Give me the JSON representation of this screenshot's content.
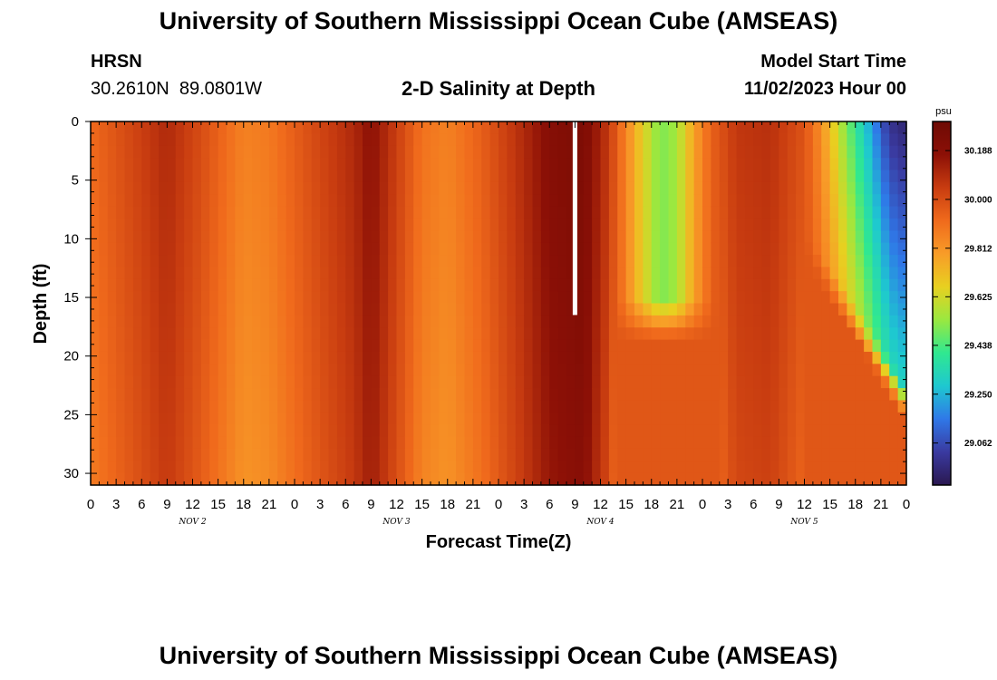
{
  "header": {
    "title": "University of Southern Mississippi Ocean Cube (AMSEAS)",
    "station": "HRSN",
    "coords": "30.2610N  89.0801W",
    "subtitle": "2-D Salinity at Depth",
    "model_label": "Model Start Time",
    "model_time": "11/02/2023 Hour 00"
  },
  "footer": {
    "title": "University of Southern Mississippi Ocean Cube (AMSEAS)"
  },
  "chart_data": {
    "type": "heatmap",
    "title": "2-D Salinity at Depth",
    "xlabel": "Forecast Time(Z)",
    "ylabel": "Depth (ft)",
    "x_unit": "forecast hour from model start",
    "xlim": [
      0,
      96
    ],
    "ylim": [
      0,
      31
    ],
    "x_ticks": [
      0,
      3,
      6,
      9,
      12,
      15,
      18,
      21,
      24,
      27,
      30,
      33,
      36,
      39,
      42,
      45,
      48,
      51,
      54,
      57,
      60,
      63,
      66,
      69,
      72,
      75,
      78,
      81,
      84,
      87,
      90,
      93,
      96
    ],
    "x_tick_labels": [
      "0",
      "3",
      "6",
      "9",
      "12",
      "15",
      "18",
      "21",
      "0",
      "3",
      "6",
      "9",
      "12",
      "15",
      "18",
      "21",
      "0",
      "3",
      "6",
      "9",
      "12",
      "15",
      "18",
      "21",
      "0",
      "3",
      "6",
      "9",
      "12",
      "15",
      "18",
      "21",
      "0"
    ],
    "y_ticks": [
      0,
      5,
      10,
      15,
      20,
      25,
      30
    ],
    "y_tick_labels": [
      "0",
      "5",
      "10",
      "15",
      "20",
      "25",
      "30"
    ],
    "date_labels": [
      {
        "hour": 12,
        "label": "NOV 2"
      },
      {
        "hour": 36,
        "label": "NOV 3"
      },
      {
        "hour": 60,
        "label": "NOV 4"
      },
      {
        "hour": 84,
        "label": "NOV 5"
      }
    ],
    "marker": {
      "hour": 57,
      "depth_from": 0,
      "depth_to": 16.5,
      "color": "#ffffff"
    },
    "colorbar": {
      "unit": "psu",
      "min": 28.9,
      "max": 30.3,
      "ticks": [
        30.188,
        30.0,
        29.812,
        29.625,
        29.438,
        29.25,
        29.062
      ],
      "tick_labels": [
        "30.188",
        "30.000",
        "29.812",
        "29.625",
        "29.438",
        "29.250",
        "29.062"
      ],
      "colors": [
        "#2a1850",
        "#3a3aa0",
        "#2f78e8",
        "#1ec8d0",
        "#30e890",
        "#9ae840",
        "#e8d020",
        "#f89c28",
        "#f06a1c",
        "#c83c10",
        "#8c1006",
        "#6e0a04"
      ]
    },
    "surface_profile_psu": [
      {
        "hour": 0,
        "value": 29.92
      },
      {
        "hour": 5,
        "value": 30.02
      },
      {
        "hour": 9,
        "value": 30.1
      },
      {
        "hour": 13,
        "value": 30.0
      },
      {
        "hour": 18,
        "value": 29.86
      },
      {
        "hour": 21,
        "value": 29.88
      },
      {
        "hour": 26,
        "value": 30.0
      },
      {
        "hour": 31,
        "value": 30.1
      },
      {
        "hour": 33,
        "value": 30.18
      },
      {
        "hour": 36,
        "value": 30.04
      },
      {
        "hour": 39,
        "value": 29.9
      },
      {
        "hour": 42,
        "value": 29.86
      },
      {
        "hour": 46,
        "value": 29.95
      },
      {
        "hour": 51,
        "value": 30.1
      },
      {
        "hour": 54,
        "value": 30.2
      },
      {
        "hour": 58,
        "value": 30.24
      },
      {
        "hour": 61,
        "value": 30.05
      },
      {
        "hour": 63,
        "value": 29.85
      },
      {
        "hour": 65,
        "value": 29.66
      },
      {
        "hour": 67,
        "value": 29.5
      },
      {
        "hour": 69,
        "value": 29.55
      },
      {
        "hour": 71,
        "value": 29.78
      },
      {
        "hour": 73,
        "value": 29.94
      },
      {
        "hour": 76,
        "value": 30.06
      },
      {
        "hour": 80,
        "value": 30.08
      },
      {
        "hour": 84,
        "value": 29.98
      },
      {
        "hour": 86,
        "value": 29.82
      },
      {
        "hour": 88,
        "value": 29.6
      },
      {
        "hour": 90,
        "value": 29.4
      },
      {
        "hour": 92,
        "value": 29.2
      },
      {
        "hour": 94,
        "value": 29.0
      },
      {
        "hour": 96,
        "value": 28.95
      }
    ]
  }
}
